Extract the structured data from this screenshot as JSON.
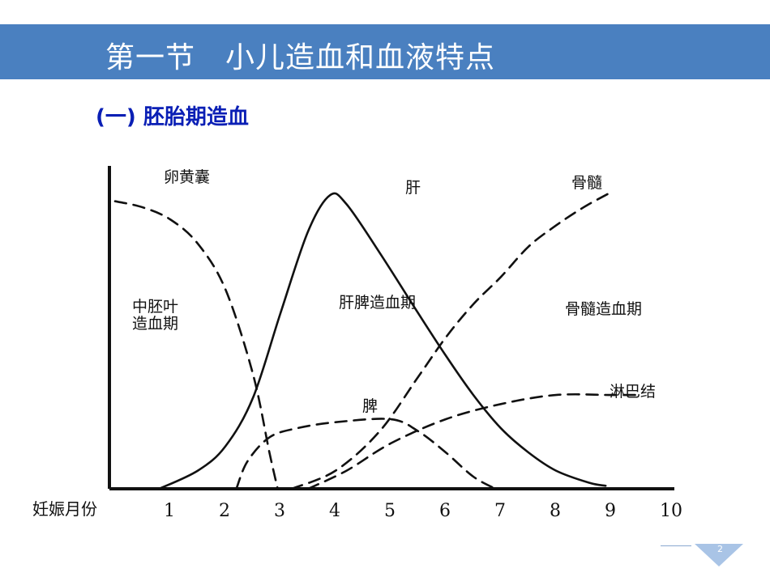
{
  "slide": {
    "title": "第一节　小儿造血和血液特点",
    "subtitle": "(一) 胚胎期造血",
    "page_number": "2",
    "colors": {
      "title_bar": "#4a80c0",
      "subtitle": "#0a1fb5",
      "ink": "#111111"
    }
  },
  "chart_data": {
    "type": "line",
    "xlabel": "妊娠月份",
    "x_ticks": [
      "1",
      "2",
      "3",
      "4",
      "5",
      "6",
      "7",
      "8",
      "9",
      "10"
    ],
    "xlim": [
      0,
      10
    ],
    "ylim": [
      0,
      100
    ],
    "grid": false,
    "series": [
      {
        "name": "卵黄囊",
        "style": "dashed",
        "points": [
          [
            0.0,
            95
          ],
          [
            0.5,
            93
          ],
          [
            1.0,
            89
          ],
          [
            1.5,
            81
          ],
          [
            2.0,
            66
          ],
          [
            2.5,
            38
          ],
          [
            2.8,
            12
          ],
          [
            2.95,
            0
          ]
        ]
      },
      {
        "name": "肝",
        "style": "solid",
        "points": [
          [
            0.8,
            0
          ],
          [
            1.5,
            6
          ],
          [
            2.0,
            14
          ],
          [
            2.5,
            30
          ],
          [
            3.0,
            58
          ],
          [
            3.5,
            85
          ],
          [
            3.9,
            97
          ],
          [
            4.2,
            94
          ],
          [
            4.8,
            78
          ],
          [
            5.5,
            58
          ],
          [
            6.0,
            44
          ],
          [
            6.5,
            31
          ],
          [
            7.0,
            20
          ],
          [
            7.5,
            12
          ],
          [
            8.0,
            6
          ],
          [
            8.6,
            2
          ],
          [
            8.9,
            1
          ]
        ]
      },
      {
        "name": "骨髓",
        "style": "dashed",
        "points": [
          [
            3.2,
            0
          ],
          [
            4.0,
            6
          ],
          [
            4.8,
            19
          ],
          [
            5.5,
            37
          ],
          [
            6.0,
            50
          ],
          [
            6.5,
            61
          ],
          [
            7.0,
            70
          ],
          [
            7.5,
            80
          ],
          [
            8.0,
            87
          ],
          [
            8.5,
            93
          ],
          [
            9.0,
            98
          ]
        ]
      },
      {
        "name": "脾",
        "style": "dashed",
        "points": [
          [
            2.2,
            0
          ],
          [
            2.4,
            9
          ],
          [
            2.8,
            17
          ],
          [
            3.3,
            20
          ],
          [
            4.0,
            22
          ],
          [
            5.0,
            23
          ],
          [
            5.5,
            19
          ],
          [
            6.0,
            12
          ],
          [
            6.5,
            4
          ],
          [
            6.9,
            0
          ]
        ]
      },
      {
        "name": "淋巴结",
        "style": "dashed",
        "points": [
          [
            3.5,
            0
          ],
          [
            4.2,
            6
          ],
          [
            5.0,
            15
          ],
          [
            6.0,
            23
          ],
          [
            7.0,
            28
          ],
          [
            8.0,
            31
          ],
          [
            9.0,
            31
          ],
          [
            9.5,
            31
          ]
        ]
      }
    ],
    "annotations": {
      "yolk_sac": "卵黄囊",
      "liver": "肝",
      "bone_marrow": "骨髓",
      "spleen": "脾",
      "lymph_node": "淋巴结",
      "mesoderm_period_line1": "中胚叶",
      "mesoderm_period_line2": "造血期",
      "liver_spleen_period": "肝脾造血期",
      "bone_marrow_period": "骨髓造血期"
    }
  }
}
